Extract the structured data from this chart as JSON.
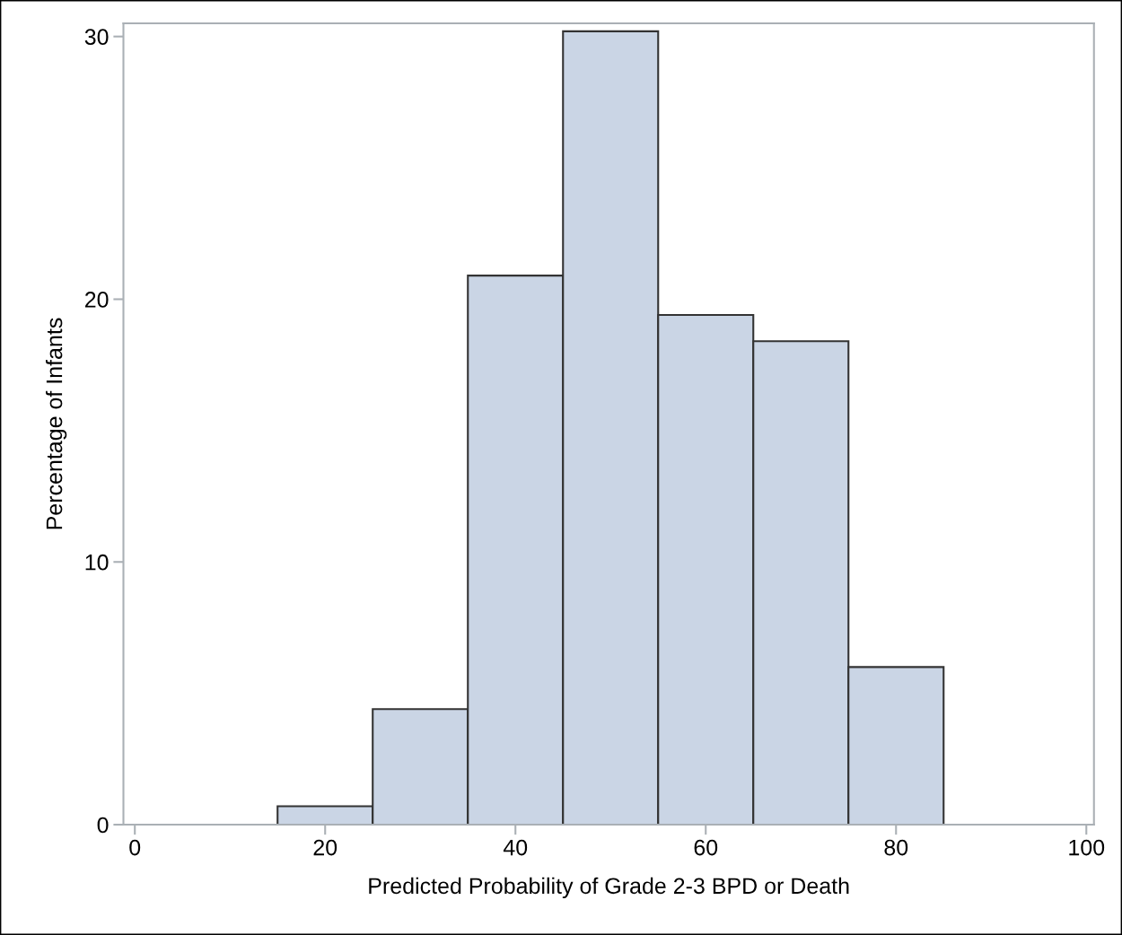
{
  "chart_data": {
    "type": "histogram",
    "xlabel": "Predicted Probability of Grade 2-3 BPD or Death",
    "ylabel": "Percentage of Infants",
    "bins": [
      5,
      15,
      25,
      35,
      45,
      55,
      65,
      75,
      85,
      95
    ],
    "values": [
      0,
      0.7,
      4.4,
      20.9,
      30.2,
      19.4,
      18.4,
      6.0,
      0
    ],
    "color": "#cad5e5",
    "xlim": [
      -1.2,
      100.8
    ],
    "ylim": [
      0,
      30.5
    ],
    "xticks": [
      0,
      20,
      40,
      60,
      80,
      100
    ],
    "yticks": [
      0,
      10,
      20,
      30
    ],
    "grid": false
  }
}
